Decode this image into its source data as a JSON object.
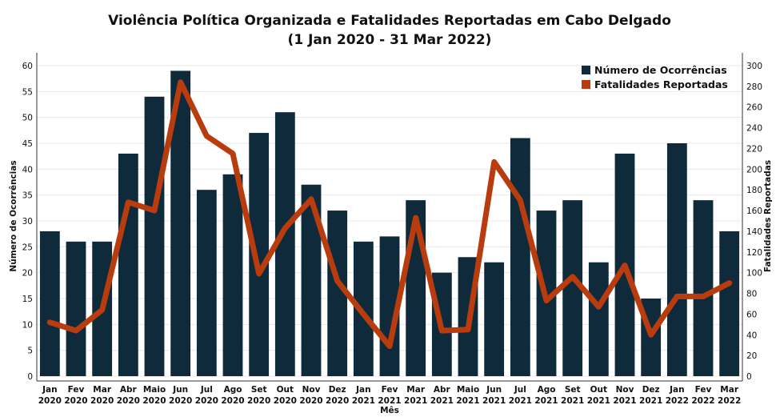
{
  "chart_data": {
    "type": "bar",
    "title": "Violência Política Organizada e Fatalidades Reportadas em Cabo Delgado",
    "subtitle": "(1 Jan 2020 - 31 Mar 2022)",
    "xlabel": "Mês",
    "ylabel": "Número de Ocorrências",
    "y2label": "Fatalidades Reportadas",
    "ylim": [
      0,
      60
    ],
    "y2lim": [
      0,
      300
    ],
    "yticks": [
      0,
      5,
      10,
      15,
      20,
      25,
      30,
      35,
      40,
      45,
      50,
      55,
      60
    ],
    "y2ticks": [
      0,
      20,
      40,
      60,
      80,
      100,
      120,
      140,
      160,
      180,
      200,
      220,
      240,
      260,
      280,
      300
    ],
    "legend_position": "top-right",
    "categories": [
      {
        "month": "Jan",
        "year": "2020"
      },
      {
        "month": "Fev",
        "year": "2020"
      },
      {
        "month": "Mar",
        "year": "2020"
      },
      {
        "month": "Abr",
        "year": "2020"
      },
      {
        "month": "Maio",
        "year": "2020"
      },
      {
        "month": "Jun",
        "year": "2020"
      },
      {
        "month": "Jul",
        "year": "2020"
      },
      {
        "month": "Ago",
        "year": "2020"
      },
      {
        "month": "Set",
        "year": "2020"
      },
      {
        "month": "Out",
        "year": "2020"
      },
      {
        "month": "Nov",
        "year": "2020"
      },
      {
        "month": "Dez",
        "year": "2020"
      },
      {
        "month": "Jan",
        "year": "2021"
      },
      {
        "month": "Fev",
        "year": "2021"
      },
      {
        "month": "Mar",
        "year": "2021"
      },
      {
        "month": "Abr",
        "year": "2021"
      },
      {
        "month": "Maio",
        "year": "2021"
      },
      {
        "month": "Jun",
        "year": "2021"
      },
      {
        "month": "Jul",
        "year": "2021"
      },
      {
        "month": "Ago",
        "year": "2021"
      },
      {
        "month": "Set",
        "year": "2021"
      },
      {
        "month": "Out",
        "year": "2021"
      },
      {
        "month": "Nov",
        "year": "2021"
      },
      {
        "month": "Dez",
        "year": "2021"
      },
      {
        "month": "Jan",
        "year": "2022"
      },
      {
        "month": "Fev",
        "year": "2022"
      },
      {
        "month": "Mar",
        "year": "2022"
      }
    ],
    "series": [
      {
        "name": "Número de Ocorrências",
        "type": "bar",
        "axis": "left",
        "color": "#0f2a3a",
        "values": [
          28,
          26,
          26,
          43,
          54,
          59,
          36,
          39,
          47,
          51,
          37,
          32,
          26,
          27,
          34,
          20,
          23,
          22,
          46,
          32,
          34,
          22,
          43,
          15,
          45,
          34,
          28
        ]
      },
      {
        "name": "Fatalidades Reportadas",
        "type": "line",
        "axis": "right",
        "color": "#b83c0e",
        "values": [
          52,
          44,
          64,
          168,
          160,
          284,
          232,
          215,
          99,
          143,
          171,
          92,
          60,
          29,
          153,
          44,
          45,
          207,
          170,
          73,
          96,
          67,
          107,
          40,
          77,
          77,
          90
        ]
      }
    ]
  }
}
